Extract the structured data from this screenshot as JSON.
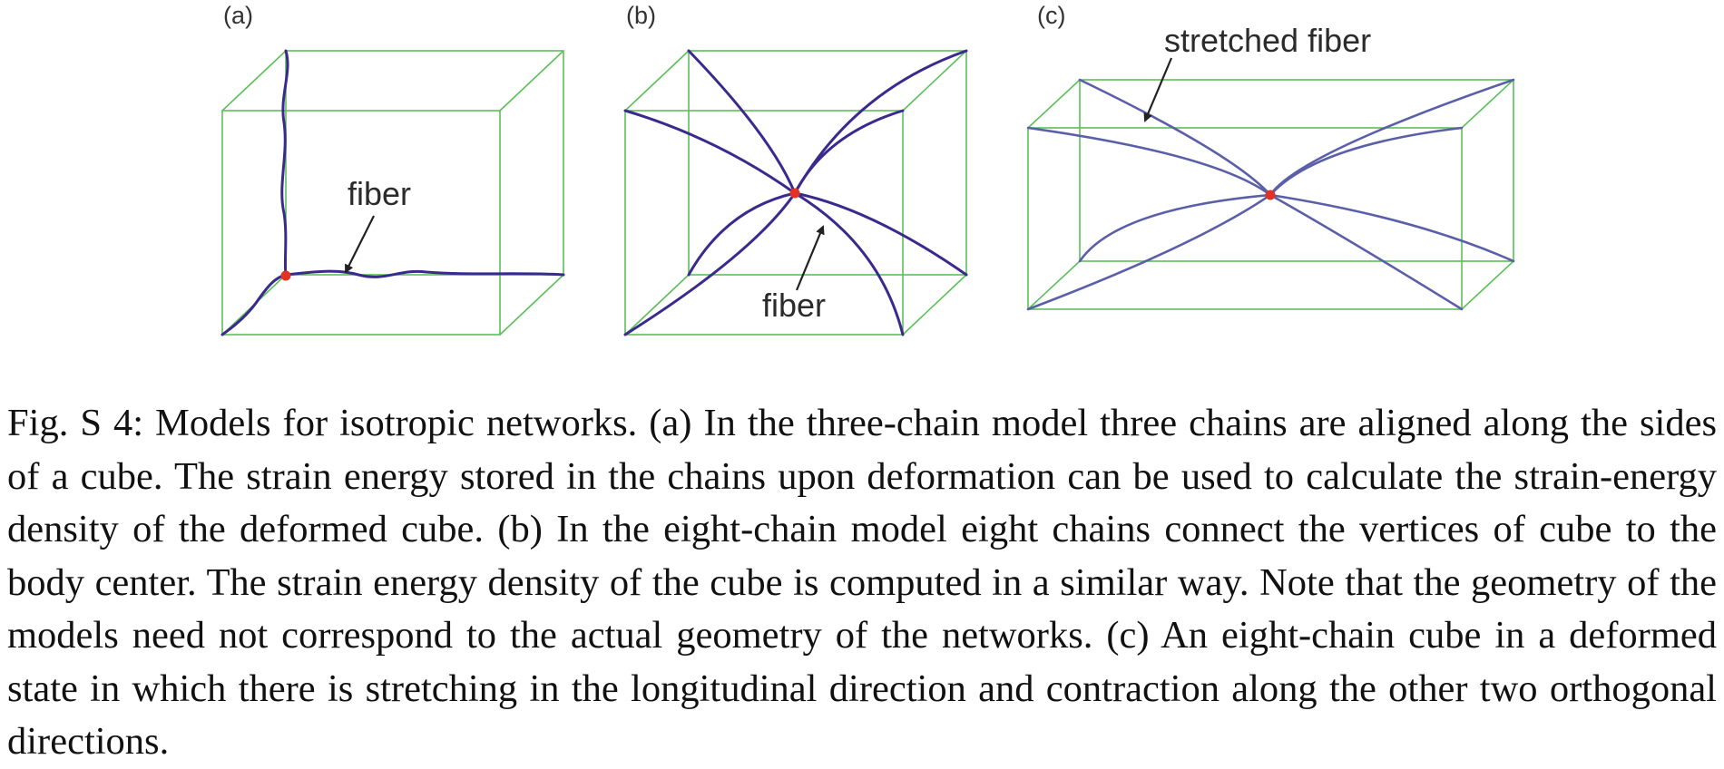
{
  "panels": [
    {
      "label": "(a)",
      "annotation": "fiber"
    },
    {
      "label": "(b)",
      "annotation": "fiber"
    },
    {
      "label": "(c)",
      "annotation": "stretched fiber"
    }
  ],
  "colors": {
    "cube_edge": "#5cc05a",
    "fiber": "#3b2a8e",
    "stretched_fiber": "#5a5fa8",
    "node": "#e23226",
    "arrow": "#222222"
  },
  "caption": {
    "prefix": "Fig.  S 4:",
    "text": " Models for isotropic networks.  (a) In the three-chain model three chains are aligned along the sides of a cube. The strain energy stored in the chains upon deformation can be used to calculate the strain-energy density of the deformed cube. (b) In the eight-chain model eight chains connect the vertices of cube to the body center. The strain energy density of the cube is computed in a similar way. Note that the geometry of the models need not correspond to the actual geometry of the networks.  (c) An eight-chain cube in a deformed state in which there is stretching in the longitudinal direction and contraction along the other two orthogonal directions."
  }
}
